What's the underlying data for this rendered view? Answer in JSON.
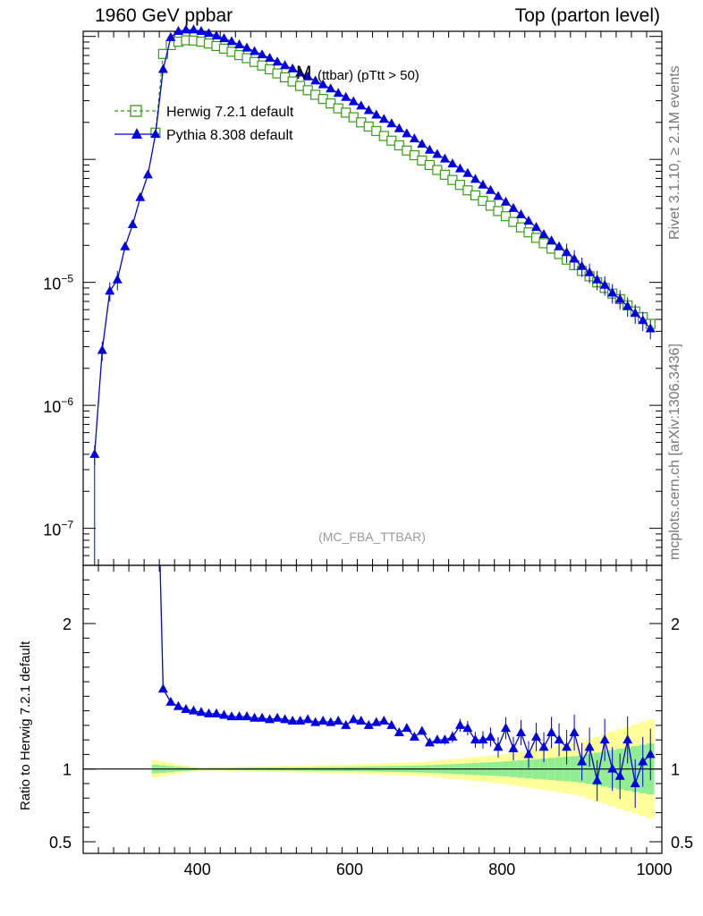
{
  "header": {
    "left": "1960 GeV ppbar",
    "right": "Top (parton level)"
  },
  "side": {
    "rivet": "Rivet 3.1.10, ≥ 2.1M events",
    "site": "mcplots.cern.ch [arXiv:1306.3436]"
  },
  "plot": {
    "title_main": "M",
    "title_sub": "(ttbar) (pTtt > 50)",
    "watermark": "(MC_FBA_TTBAR)",
    "ratio_ylabel": "Ratio to Herwig 7.2.1 default"
  },
  "colors": {
    "herwig": "#3a9a1a",
    "pythia": "#0000e0",
    "band_yellow": "#ffff99",
    "band_green": "#90ee90"
  },
  "chart_data": {
    "type": "line",
    "x_range": [
      250,
      1010
    ],
    "y_scale": "log",
    "y_range": [
      5e-08,
      0.0011
    ],
    "ratio_range": [
      0.42,
      2.4
    ],
    "x_ticks": [
      {
        "v": 400,
        "label": "400"
      },
      {
        "v": 600,
        "label": "600"
      },
      {
        "v": 800,
        "label": "800"
      },
      {
        "v": 1000,
        "label": "1000"
      }
    ],
    "y_ticks": [
      {
        "v": 1e-05,
        "base": "10",
        "exp": "−5"
      },
      {
        "v": 1e-06,
        "base": "10",
        "exp": "−6"
      },
      {
        "v": 1e-07,
        "base": "10",
        "exp": "−7"
      }
    ],
    "ratio_ticks": [
      {
        "v": 2,
        "label": "2"
      },
      {
        "v": 1,
        "label": "1"
      },
      {
        "v": 0.5,
        "label": "0.5"
      }
    ],
    "legend_position": "top-left",
    "series": [
      {
        "name": "Herwig 7.2.1 default",
        "marker": "open-square",
        "points": [
          [
            345,
            0.000165
          ],
          [
            355,
            0.00072
          ],
          [
            365,
            0.00085
          ],
          [
            375,
            0.000905
          ],
          [
            385,
            0.00093
          ],
          [
            395,
            0.000925
          ],
          [
            405,
            0.000905
          ],
          [
            415,
            0.000875
          ],
          [
            425,
            0.000835
          ],
          [
            435,
            0.000795
          ],
          [
            445,
            0.00075
          ],
          [
            455,
            0.000705
          ],
          [
            465,
            0.000665
          ],
          [
            475,
            0.00062
          ],
          [
            485,
            0.00058
          ],
          [
            495,
            0.00054
          ],
          [
            505,
            0.0005
          ],
          [
            515,
            0.000465
          ],
          [
            525,
            0.00043
          ],
          [
            535,
            0.000395
          ],
          [
            545,
            0.000365
          ],
          [
            555,
            0.000335
          ],
          [
            565,
            0.00031
          ],
          [
            575,
            0.000285
          ],
          [
            585,
            0.00026
          ],
          [
            595,
            0.00024
          ],
          [
            605,
            0.00022
          ],
          [
            615,
            0.0002
          ],
          [
            625,
            0.000185
          ],
          [
            635,
            0.00017
          ],
          [
            645,
            0.000155
          ],
          [
            655,
            0.000142
          ],
          [
            665,
            0.00013
          ],
          [
            675,
            0.000118
          ],
          [
            685,
            0.000108
          ],
          [
            695,
            9.8e-05
          ],
          [
            705,
            9e-05
          ],
          [
            715,
            8.2e-05
          ],
          [
            725,
            7.5e-05
          ],
          [
            735,
            6.8e-05
          ],
          [
            745,
            6.2e-05
          ],
          [
            755,
            5.6e-05
          ],
          [
            765,
            5.1e-05
          ],
          [
            775,
            4.6e-05
          ],
          [
            785,
            4.2e-05
          ],
          [
            795,
            3.8e-05
          ],
          [
            805,
            3.45e-05
          ],
          [
            815,
            3.1e-05
          ],
          [
            825,
            2.8e-05
          ],
          [
            835,
            2.55e-05
          ],
          [
            845,
            2.3e-05
          ],
          [
            855,
            2.08e-05
          ],
          [
            865,
            1.88e-05
          ],
          [
            875,
            1.7e-05
          ],
          [
            885,
            1.53e-05
          ],
          [
            895,
            1.38e-05
          ],
          [
            905,
            1.24e-05
          ],
          [
            915,
            1.12e-05
          ],
          [
            925,
            1e-05
          ],
          [
            935,
            9e-06
          ],
          [
            945,
            8.1e-06
          ],
          [
            955,
            7.3e-06
          ],
          [
            965,
            6.5e-06
          ],
          [
            975,
            5.8e-06
          ],
          [
            985,
            5.2e-06
          ],
          [
            995,
            4.6e-06
          ]
        ]
      },
      {
        "name": "Pythia 8.308 default",
        "marker": "filled-triangle",
        "points": [
          [
            265,
            4e-07
          ],
          [
            275,
            2.8e-06
          ],
          [
            285,
            8.5e-06
          ],
          [
            295,
            1.05e-05
          ],
          [
            305,
            1.95e-05
          ],
          [
            315,
            2.95e-05
          ],
          [
            325,
            4.9e-05
          ],
          [
            335,
            7.5e-05
          ],
          [
            345,
            0.00016
          ],
          [
            355,
            0.00054
          ],
          [
            365,
            0.00098
          ],
          [
            375,
            0.0011
          ],
          [
            385,
            0.00113
          ],
          [
            395,
            0.00113
          ],
          [
            405,
            0.0011
          ],
          [
            415,
            0.00106
          ],
          [
            425,
            0.00101
          ],
          [
            435,
            0.00096
          ],
          [
            445,
            0.00091
          ],
          [
            455,
            0.000855
          ],
          [
            465,
            0.000805
          ],
          [
            475,
            0.000755
          ],
          [
            485,
            0.00071
          ],
          [
            495,
            0.000665
          ],
          [
            505,
            0.00062
          ],
          [
            515,
            0.00058
          ],
          [
            525,
            0.000545
          ],
          [
            535,
            0.000505
          ],
          [
            545,
            0.00047
          ],
          [
            555,
            0.000435
          ],
          [
            565,
            0.000405
          ],
          [
            575,
            0.000375
          ],
          [
            585,
            0.000345
          ],
          [
            595,
            0.00032
          ],
          [
            605,
            0.000295
          ],
          [
            615,
            0.000272
          ],
          [
            625,
            0.00025
          ],
          [
            635,
            0.00023
          ],
          [
            645,
            0.000212
          ],
          [
            655,
            0.000195
          ],
          [
            665,
            0.000178
          ],
          [
            675,
            0.000162
          ],
          [
            685,
            0.000147
          ],
          [
            695,
            0.000133
          ],
          [
            705,
            0.000119
          ],
          [
            715,
            0.00011
          ],
          [
            725,
            0.000101
          ],
          [
            735,
            9.2e-05
          ],
          [
            745,
            8.4e-05
          ],
          [
            755,
            7.7e-05
          ],
          [
            765,
            6.9e-05
          ],
          [
            775,
            6.2e-05
          ],
          [
            785,
            5.6e-05
          ],
          [
            795,
            5e-05
          ],
          [
            805,
            4.5e-05
          ],
          [
            815,
            4e-05
          ],
          [
            825,
            3.55e-05
          ],
          [
            835,
            3.15e-05
          ],
          [
            845,
            2.8e-05
          ],
          [
            855,
            2.45e-05
          ],
          [
            865,
            2.18e-05
          ],
          [
            875,
            1.95e-05
          ],
          [
            885,
            1.75e-05
          ],
          [
            895,
            1.55e-05
          ],
          [
            905,
            1.35e-05
          ],
          [
            915,
            1.2e-05
          ],
          [
            925,
            1.05e-05
          ],
          [
            935,
            9.5e-06
          ],
          [
            945,
            8.2e-06
          ],
          [
            955,
            7.3e-06
          ],
          [
            965,
            6.4e-06
          ],
          [
            975,
            5.6e-06
          ],
          [
            985,
            4.9e-06
          ],
          [
            995,
            4.2e-06
          ]
        ]
      }
    ],
    "ratio": {
      "pythia": [
        [
          355,
          1.55
        ],
        [
          365,
          1.46
        ],
        [
          375,
          1.43
        ],
        [
          385,
          1.41
        ],
        [
          395,
          1.4
        ],
        [
          405,
          1.39
        ],
        [
          415,
          1.38
        ],
        [
          425,
          1.38
        ],
        [
          435,
          1.37
        ],
        [
          445,
          1.36
        ],
        [
          455,
          1.36
        ],
        [
          465,
          1.36
        ],
        [
          475,
          1.35
        ],
        [
          485,
          1.35
        ],
        [
          495,
          1.34
        ],
        [
          505,
          1.35
        ],
        [
          515,
          1.34
        ],
        [
          525,
          1.33
        ],
        [
          535,
          1.33
        ],
        [
          545,
          1.34
        ],
        [
          555,
          1.32
        ],
        [
          565,
          1.33
        ],
        [
          575,
          1.32
        ],
        [
          585,
          1.33
        ],
        [
          595,
          1.3
        ],
        [
          605,
          1.34
        ],
        [
          615,
          1.33
        ],
        [
          625,
          1.3
        ],
        [
          635,
          1.32
        ],
        [
          645,
          1.33
        ],
        [
          655,
          1.3
        ],
        [
          665,
          1.25
        ],
        [
          675,
          1.28
        ],
        [
          685,
          1.22
        ],
        [
          695,
          1.26
        ],
        [
          705,
          1.18
        ],
        [
          715,
          1.2
        ],
        [
          725,
          1.2
        ],
        [
          735,
          1.22
        ],
        [
          745,
          1.3
        ],
        [
          755,
          1.28
        ],
        [
          765,
          1.2
        ],
        [
          775,
          1.2
        ],
        [
          785,
          1.22
        ],
        [
          795,
          1.15
        ],
        [
          805,
          1.28
        ],
        [
          815,
          1.14
        ],
        [
          825,
          1.25
        ],
        [
          835,
          1.1
        ],
        [
          845,
          1.22
        ],
        [
          855,
          1.15
        ],
        [
          865,
          1.25
        ],
        [
          875,
          1.2
        ],
        [
          885,
          1.15
        ],
        [
          895,
          1.25
        ],
        [
          905,
          1.05
        ],
        [
          915,
          1.15
        ],
        [
          925,
          0.92
        ],
        [
          935,
          1.2
        ],
        [
          945,
          1.0
        ],
        [
          955,
          0.95
        ],
        [
          965,
          1.2
        ],
        [
          975,
          0.9
        ],
        [
          985,
          1.05
        ],
        [
          995,
          1.1
        ]
      ],
      "yellow_half": [
        [
          345,
          0.06
        ],
        [
          400,
          0.01
        ],
        [
          500,
          0.02
        ],
        [
          600,
          0.03
        ],
        [
          700,
          0.05
        ],
        [
          800,
          0.1
        ],
        [
          900,
          0.18
        ],
        [
          1000,
          0.35
        ]
      ],
      "green_half": [
        [
          345,
          0.03
        ],
        [
          400,
          0.006
        ],
        [
          500,
          0.01
        ],
        [
          600,
          0.015
        ],
        [
          700,
          0.025
        ],
        [
          800,
          0.05
        ],
        [
          900,
          0.09
        ],
        [
          1000,
          0.18
        ]
      ]
    }
  }
}
